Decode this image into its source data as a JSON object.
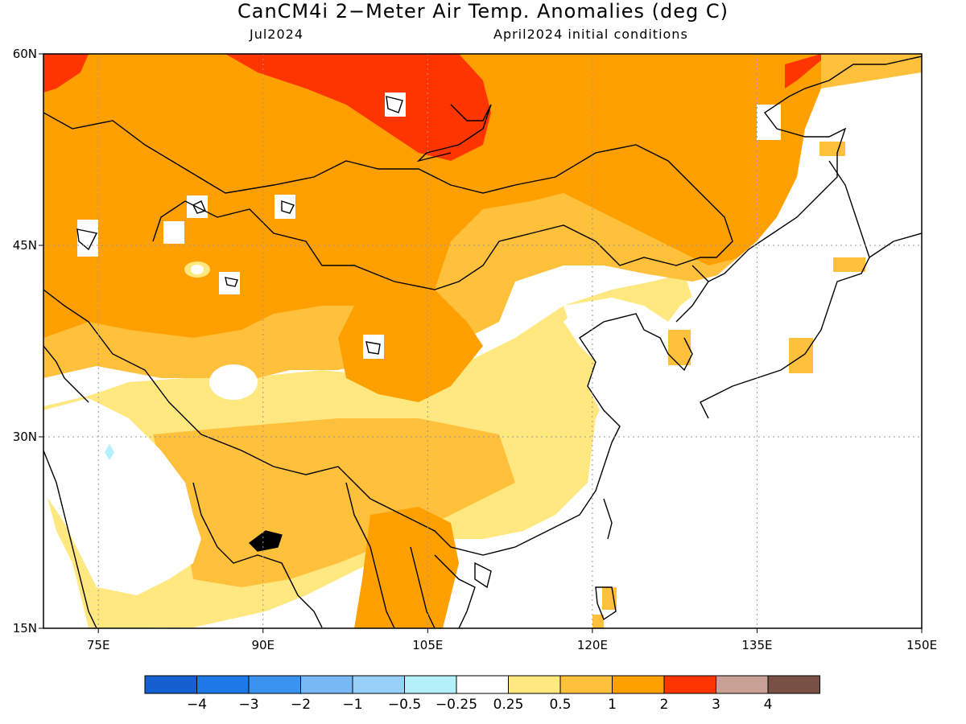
{
  "header": {
    "title": "CanCM4i 2−Meter Air Temp. Anomalies (deg C)",
    "left_subtitle": "Jul2024",
    "right_subtitle": "April2024 initial conditions"
  },
  "axes": {
    "lat_labels": [
      "60N",
      "45N",
      "30N",
      "15N"
    ],
    "lon_labels": [
      "75E",
      "90E",
      "105E",
      "120E",
      "135E",
      "150E"
    ],
    "lat_values": [
      60,
      45,
      30,
      15
    ],
    "lon_values": [
      75,
      90,
      105,
      120,
      135,
      150
    ],
    "lat_range": [
      15,
      60
    ],
    "lon_range": [
      70,
      150
    ]
  },
  "legend": {
    "bins": [
      {
        "color": "#1560d0"
      },
      {
        "color": "#1f78e8"
      },
      {
        "color": "#3b93f0"
      },
      {
        "color": "#78b8f5"
      },
      {
        "color": "#96d0f8"
      },
      {
        "color": "#b4f0fa"
      },
      {
        "color": "#ffffff"
      },
      {
        "color": "#ffe880"
      },
      {
        "color": "#ffc03c"
      },
      {
        "color": "#ffa000"
      },
      {
        "color": "#ff3500"
      },
      {
        "color": "#c8a096"
      },
      {
        "color": "#785046"
      }
    ],
    "tick_labels": [
      "−4",
      "−3",
      "−2",
      "−1",
      "−0.5",
      "−0.25",
      "0.25",
      "0.5",
      "1",
      "2",
      "3",
      "4"
    ]
  },
  "colors": {
    "anom_0_25_0_5": "#ffe880",
    "anom_0_5_1": "#ffc03c",
    "anom_1_2": "#ffa000",
    "anom_2_3": "#ff3500",
    "anom_neg_0_25_neg_0_5": "#b4f0fa"
  }
}
